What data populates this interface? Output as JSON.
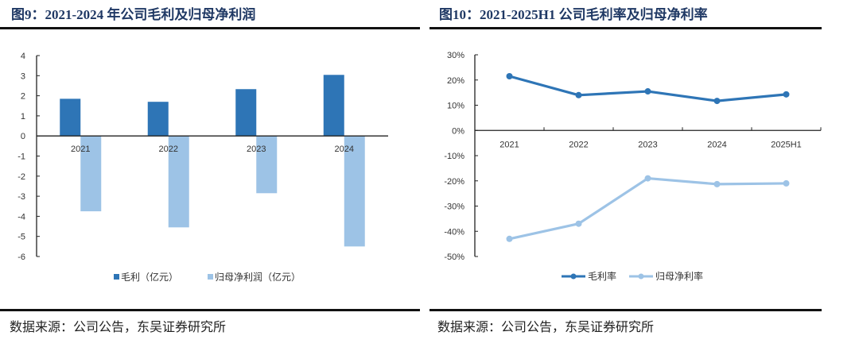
{
  "figures": [
    {
      "title": "图9：2021-2024 年公司毛利及归母净利润",
      "source": "数据来源：公司公告，东吴证券研究所"
    },
    {
      "title": "图10：2021-2025H1 公司毛利率及归母净利率",
      "source": "数据来源：公司公告，东吴证券研究所"
    }
  ],
  "chart_data": [
    {
      "type": "bar",
      "title": "2021-2024 年公司毛利及归母净利润",
      "categories": [
        "2021",
        "2022",
        "2023",
        "2024"
      ],
      "series": [
        {
          "name": "毛利（亿元）",
          "color": "#2e75b6",
          "values": [
            1.85,
            1.7,
            2.33,
            3.04
          ]
        },
        {
          "name": "归母净利润（亿元）",
          "color": "#9dc3e6",
          "values": [
            -3.75,
            -4.55,
            -2.85,
            -5.5
          ]
        }
      ],
      "ylim": [
        -6,
        4
      ],
      "yticks": [
        4,
        3,
        2,
        1,
        0,
        -1,
        -2,
        -3,
        -4,
        -5,
        -6
      ],
      "xlabel": "",
      "ylabel": "",
      "grid": false,
      "legend": "bottom"
    },
    {
      "type": "line",
      "title": "2021-2025H1 公司毛利率及归母净利率",
      "categories": [
        "2021",
        "2022",
        "2023",
        "2024",
        "2025H1"
      ],
      "series": [
        {
          "name": "毛利率",
          "color": "#2e75b6",
          "values": [
            21.5,
            14.0,
            15.5,
            11.7,
            14.3
          ]
        },
        {
          "name": "归母净利率",
          "color": "#9dc3e6",
          "values": [
            -43.0,
            -37.0,
            -19.0,
            -21.3,
            -21.0
          ]
        }
      ],
      "ylim": [
        -50,
        30
      ],
      "yticks": [
        "30%",
        "20%",
        "10%",
        "0%",
        "-10%",
        "-20%",
        "-30%",
        "-40%",
        "-50%"
      ],
      "ytick_values": [
        30,
        20,
        10,
        0,
        -10,
        -20,
        -30,
        -40,
        -50
      ],
      "xlabel": "",
      "ylabel": "",
      "grid": false,
      "legend": "bottom"
    }
  ]
}
